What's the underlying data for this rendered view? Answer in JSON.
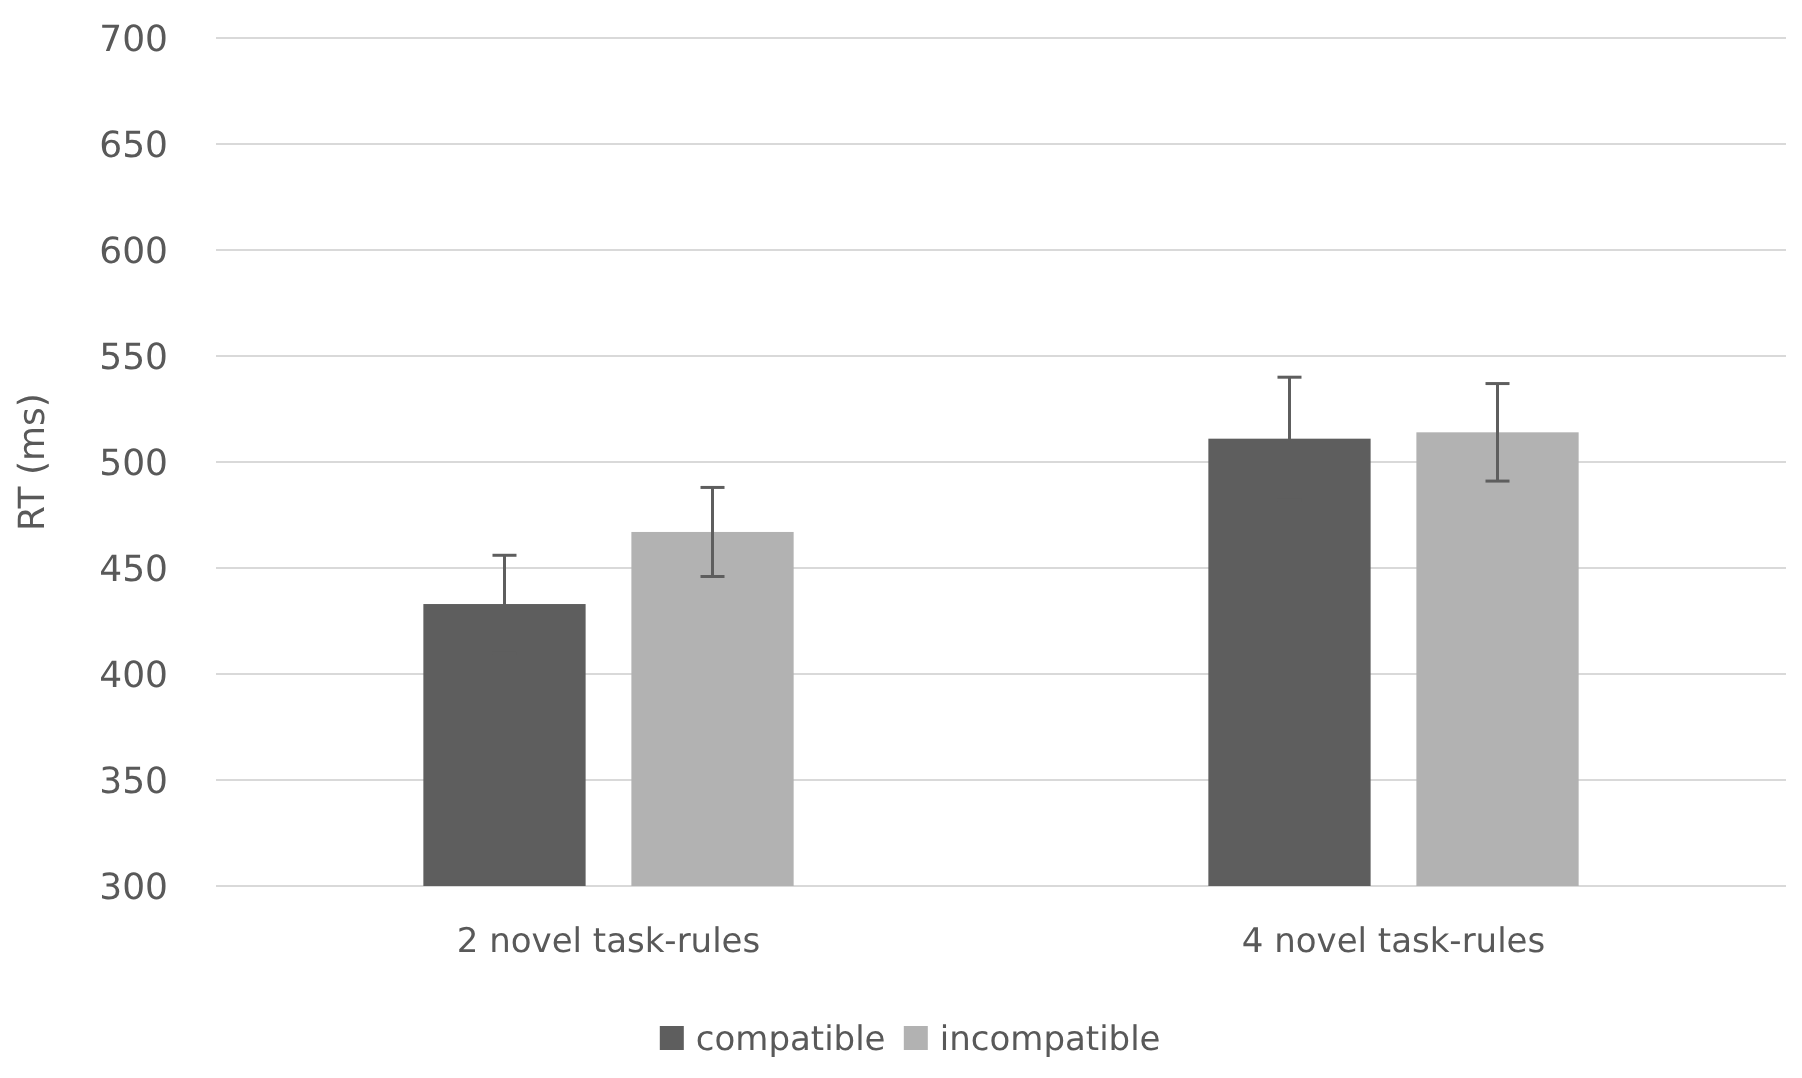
{
  "chart_data": {
    "type": "bar",
    "ylabel": "RT (ms)",
    "categories": [
      "2 novel task-rules",
      "4 novel task-rules"
    ],
    "series": [
      {
        "name": "compatible",
        "color": "#5e5e5e",
        "values": [
          433,
          511
        ],
        "errors": [
          23,
          29
        ]
      },
      {
        "name": "incompatible",
        "color": "#b2b2b2",
        "values": [
          467,
          514
        ],
        "errors": [
          21,
          23
        ]
      }
    ],
    "ylim": [
      300,
      700
    ],
    "yticks": [
      300,
      350,
      400,
      450,
      500,
      550,
      600,
      650,
      700
    ],
    "grid": "y",
    "legend": "bottom"
  }
}
